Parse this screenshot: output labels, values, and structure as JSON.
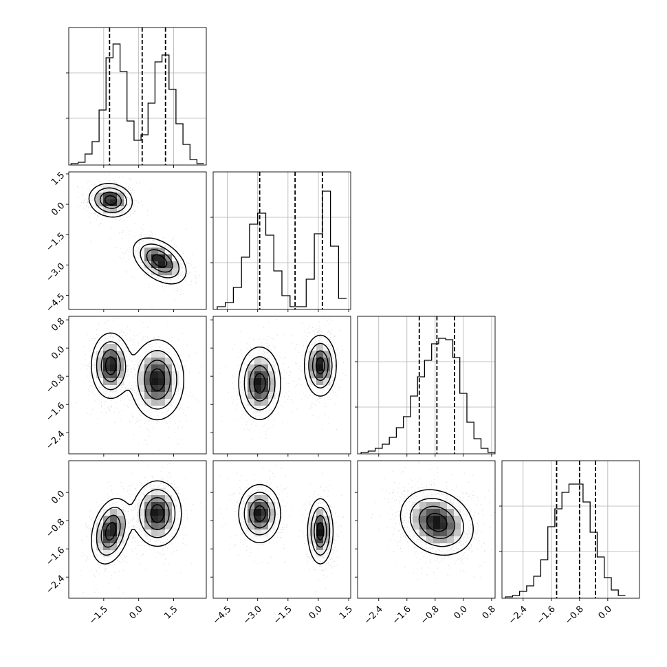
{
  "chart_data": {
    "type": "corner",
    "title": "",
    "parameters": 4,
    "quantile_lines": "dashed",
    "grid": true,
    "marginals": [
      {
        "var": 0,
        "ylim": [
          0,
          1
        ],
        "hist_bins": [
          -2.9,
          -2.6,
          -2.3,
          -2.0,
          -1.7,
          -1.4,
          -1.1,
          -0.8,
          -0.5,
          -0.2,
          0.1,
          0.4,
          0.7,
          1.0,
          1.3,
          1.6,
          1.9,
          2.2,
          2.5,
          2.8
        ],
        "hist_values": [
          0.01,
          0.02,
          0.08,
          0.17,
          0.4,
          0.78,
          0.88,
          0.68,
          0.32,
          0.18,
          0.22,
          0.45,
          0.75,
          0.8,
          0.55,
          0.3,
          0.15,
          0.04,
          0.01
        ],
        "quantiles": [
          -1.25,
          0.15,
          1.15
        ]
      },
      {
        "var": 1,
        "ylim": [
          0,
          1
        ],
        "hist_bins": [
          -5.0,
          -4.6,
          -4.2,
          -3.8,
          -3.4,
          -3.0,
          -2.6,
          -2.2,
          -1.8,
          -1.4,
          -1.0,
          -0.6,
          -0.2,
          0.2,
          0.6,
          1.0,
          1.4
        ],
        "hist_values": [
          0.02,
          0.05,
          0.16,
          0.38,
          0.62,
          0.7,
          0.54,
          0.28,
          0.1,
          0.02,
          0.02,
          0.22,
          0.55,
          0.86,
          0.46,
          0.08
        ],
        "quantiles": [
          -2.9,
          -1.15,
          0.2
        ]
      },
      {
        "var": 2,
        "ylim": [
          0,
          1
        ],
        "hist_bins": [
          -2.9,
          -2.7,
          -2.5,
          -2.3,
          -2.1,
          -1.9,
          -1.7,
          -1.5,
          -1.3,
          -1.1,
          -0.9,
          -0.7,
          -0.5,
          -0.3,
          -0.1,
          0.1,
          0.3,
          0.5,
          0.7,
          0.9
        ],
        "hist_values": [
          0.01,
          0.02,
          0.04,
          0.07,
          0.12,
          0.19,
          0.27,
          0.42,
          0.56,
          0.68,
          0.8,
          0.84,
          0.83,
          0.7,
          0.44,
          0.23,
          0.11,
          0.04,
          0.01
        ],
        "quantiles": [
          -1.25,
          -0.75,
          -0.25
        ]
      },
      {
        "var": 3,
        "ylim": [
          0,
          1
        ],
        "hist_bins": [
          -2.9,
          -2.7,
          -2.5,
          -2.3,
          -2.1,
          -1.9,
          -1.7,
          -1.5,
          -1.3,
          -1.1,
          -0.9,
          -0.7,
          -0.5,
          -0.3,
          -0.1,
          0.1,
          0.3,
          0.5
        ],
        "hist_values": [
          0.01,
          0.02,
          0.05,
          0.09,
          0.16,
          0.28,
          0.52,
          0.65,
          0.77,
          0.83,
          0.83,
          0.7,
          0.48,
          0.3,
          0.15,
          0.06,
          0.02
        ],
        "quantiles": [
          -1.45,
          -0.8,
          -0.35
        ]
      }
    ],
    "axes": [
      {
        "var": 0,
        "range": [
          -3.0,
          2.9
        ],
        "ticks": [
          -1.5,
          0.0,
          1.5
        ],
        "tick_labels": [
          "−1.5",
          "0.0",
          "1.5"
        ]
      },
      {
        "var": 1,
        "range": [
          -5.2,
          1.6
        ],
        "ticks": [
          -4.5,
          -3.0,
          -1.5,
          0.0,
          1.5
        ],
        "tick_labels": [
          "−4.5",
          "−3.0",
          "−1.5",
          "0.0",
          "1.5"
        ]
      },
      {
        "var": 2,
        "range": [
          -3.0,
          0.9
        ],
        "ticks": [
          -2.4,
          -1.6,
          -0.8,
          0.0,
          0.8
        ],
        "tick_labels": [
          "−2.4",
          "−1.6",
          "−0.8",
          "0.0",
          "0.8"
        ]
      },
      {
        "var": 3,
        "range": [
          -3.0,
          0.9
        ],
        "ticks": [
          -2.4,
          -1.6,
          -0.8,
          0.0
        ],
        "tick_labels": [
          "−2.4",
          "−1.6",
          "−0.8",
          "0.0"
        ]
      }
    ],
    "joint": [
      {
        "x": 0,
        "y": 1,
        "modes": [
          {
            "cx": -1.2,
            "cy": 0.2,
            "sx": 0.45,
            "sy": 0.4,
            "rho": -0.1,
            "w": 0.5
          },
          {
            "cx": 0.9,
            "cy": -2.8,
            "sx": 0.55,
            "sy": 0.55,
            "rho": -0.45,
            "w": 0.5
          }
        ]
      },
      {
        "x": 0,
        "y": 2,
        "modes": [
          {
            "cx": -1.2,
            "cy": -0.5,
            "sx": 0.4,
            "sy": 0.45,
            "rho": 0.0,
            "w": 0.5
          },
          {
            "cx": 0.8,
            "cy": -0.9,
            "sx": 0.55,
            "sy": 0.55,
            "rho": 0.0,
            "w": 0.5
          }
        ]
      },
      {
        "x": 1,
        "y": 2,
        "modes": [
          {
            "cx": -2.9,
            "cy": -1.0,
            "sx": 0.5,
            "sy": 0.5,
            "rho": 0.0,
            "w": 0.5
          },
          {
            "cx": 0.1,
            "cy": -0.5,
            "sx": 0.38,
            "sy": 0.42,
            "rho": 0.0,
            "w": 0.5
          }
        ]
      },
      {
        "x": 0,
        "y": 3,
        "modes": [
          {
            "cx": -1.2,
            "cy": -1.1,
            "sx": 0.4,
            "sy": 0.45,
            "rho": 0.3,
            "w": 0.5
          },
          {
            "cx": 0.8,
            "cy": -0.6,
            "sx": 0.5,
            "sy": 0.45,
            "rho": 0.0,
            "w": 0.5
          }
        ]
      },
      {
        "x": 1,
        "y": 3,
        "modes": [
          {
            "cx": -2.9,
            "cy": -0.6,
            "sx": 0.5,
            "sy": 0.4,
            "rho": 0.0,
            "w": 0.5
          },
          {
            "cx": 0.1,
            "cy": -1.1,
            "sx": 0.3,
            "sy": 0.45,
            "rho": 0.0,
            "w": 0.5
          }
        ]
      },
      {
        "x": 2,
        "y": 3,
        "modes": [
          {
            "cx": -0.75,
            "cy": -0.85,
            "sx": 0.5,
            "sy": 0.45,
            "rho": -0.2,
            "w": 1.0
          }
        ]
      }
    ]
  }
}
